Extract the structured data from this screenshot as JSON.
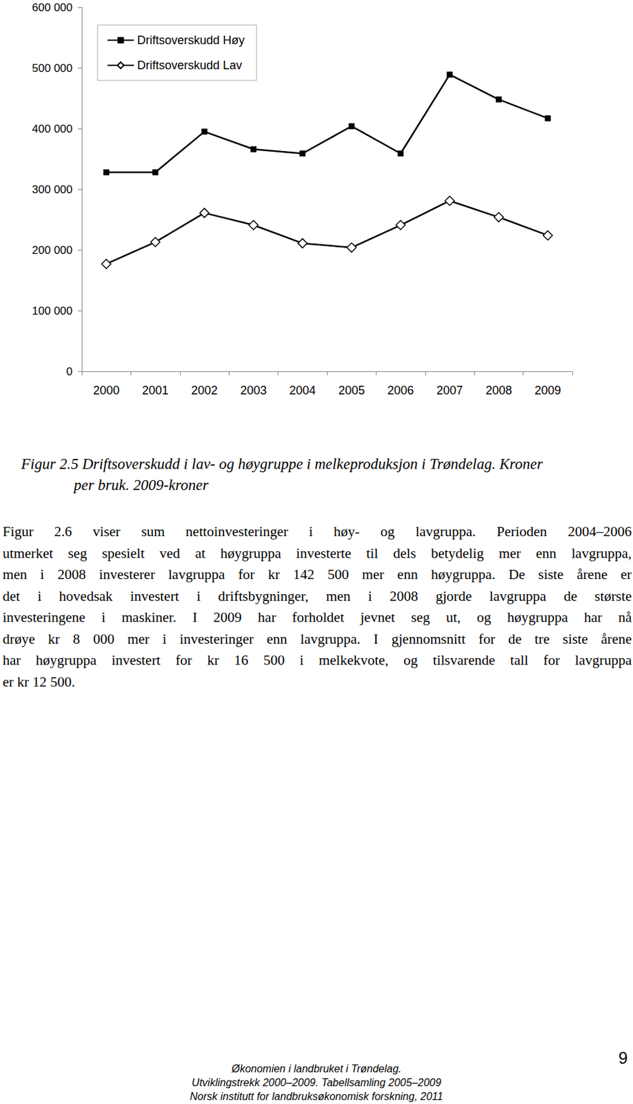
{
  "chart_data": {
    "type": "line",
    "categories": [
      "2000",
      "2001",
      "2002",
      "2003",
      "2004",
      "2005",
      "2006",
      "2007",
      "2008",
      "2009"
    ],
    "series": [
      {
        "name": "Driftsoverskudd Høy",
        "color": "#000000",
        "marker": "square",
        "values": [
          328000,
          328000,
          395000,
          366000,
          359000,
          404000,
          359000,
          489000,
          448000,
          417000
        ]
      },
      {
        "name": "Driftsoverskudd Lav",
        "color": "#000000",
        "marker": "diamond",
        "values": [
          177000,
          213000,
          261000,
          241000,
          211000,
          204000,
          241000,
          281000,
          254000,
          224000
        ]
      }
    ],
    "ylim": [
      0,
      600000
    ],
    "yticks": [
      0,
      {
        "value": 100000,
        "label": "100 000"
      },
      {
        "value": 200000,
        "label": "200 000"
      },
      {
        "value": 300000,
        "label": "300 000"
      },
      {
        "value": 400000,
        "label": "400 000"
      },
      {
        "value": 500000,
        "label": "500 000"
      },
      {
        "value": 600000,
        "label": "600 000"
      }
    ],
    "grid": false,
    "legend": "upper left"
  },
  "caption": [
    "Figur 2.5 Driftsoverskudd i lav- og høygruppe i melkeproduksjon i Trøndelag. Kroner",
    "per bruk. 2009-kroner"
  ],
  "paragraph": [
    "Figur 2.6 viser sum nettoinvesteringer i høy- og lavgruppa. Perioden 2004–2006",
    "utmerket seg spesielt ved at høygruppa investerte til dels betydelig mer enn lavgruppa,",
    "men i 2008 investerer lavgruppa for kr 142 500 mer enn høygruppa. De siste årene er",
    "det i hovedsak investert i driftsbygninger, men i 2008 gjorde lavgruppa de største",
    "investeringene i maskiner. I 2009 har forholdet jevnet seg ut, og høygruppa har nå",
    "drøye kr 8 000 mer i investeringer enn lavgruppa. I gjennomsnitt for de tre siste årene",
    "har høygruppa investert for kr 16 500 i melkekvote, og tilsvarende tall for lavgruppa",
    "er kr 12 500."
  ],
  "footer": [
    "Økonomien i landbruket i Trøndelag.",
    "Utviklingstrekk 2000–2009. Tabellsamling 2005–2009",
    "Norsk institutt for landbruksøkonomisk forskning, 2011"
  ],
  "page_number": "9"
}
